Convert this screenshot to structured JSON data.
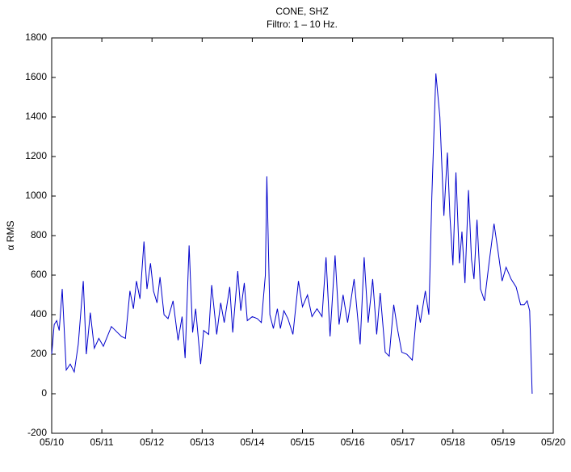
{
  "chart_data": {
    "type": "line",
    "title": "CONE, SHZ",
    "subtitle": "Filtro: 1 – 10 Hz.",
    "y_label": "α RMS",
    "x": [
      10.0,
      10.05,
      10.1,
      10.15,
      10.21,
      10.29,
      10.37,
      10.45,
      10.53,
      10.63,
      10.69,
      10.77,
      10.85,
      10.94,
      11.03,
      11.19,
      11.39,
      11.47,
      11.56,
      11.63,
      11.69,
      11.76,
      11.84,
      11.9,
      11.97,
      12.03,
      12.1,
      12.16,
      12.24,
      12.32,
      12.42,
      12.52,
      12.6,
      12.66,
      12.74,
      12.81,
      12.87,
      12.97,
      13.03,
      13.13,
      13.19,
      13.29,
      13.37,
      13.44,
      13.55,
      13.61,
      13.71,
      13.77,
      13.84,
      13.9,
      14.0,
      14.1,
      14.18,
      14.26,
      14.29,
      14.35,
      14.42,
      14.5,
      14.56,
      14.63,
      14.71,
      14.81,
      14.92,
      15.0,
      15.1,
      15.19,
      15.29,
      15.39,
      15.47,
      15.55,
      15.65,
      15.73,
      15.81,
      15.9,
      16.03,
      16.15,
      16.23,
      16.31,
      16.4,
      16.48,
      16.55,
      16.65,
      16.73,
      16.82,
      16.9,
      16.98,
      17.08,
      17.19,
      17.29,
      17.35,
      17.45,
      17.52,
      17.58,
      17.66,
      17.74,
      17.82,
      17.89,
      17.94,
      18.0,
      18.06,
      18.13,
      18.18,
      18.24,
      18.31,
      18.37,
      18.42,
      18.48,
      18.55,
      18.63,
      18.71,
      18.82,
      18.9,
      18.98,
      19.06,
      19.16,
      19.26,
      19.35,
      19.42,
      19.48,
      19.53,
      19.58
    ],
    "series": [
      {
        "color": "#0000cc",
        "values": [
          200,
          350,
          370,
          320,
          530,
          120,
          150,
          110,
          250,
          570,
          200,
          410,
          230,
          280,
          240,
          340,
          290,
          280,
          520,
          430,
          570,
          480,
          770,
          530,
          660,
          520,
          460,
          590,
          400,
          380,
          470,
          270,
          390,
          180,
          750,
          310,
          430,
          150,
          320,
          300,
          550,
          300,
          460,
          360,
          540,
          310,
          620,
          420,
          560,
          370,
          390,
          380,
          360,
          600,
          1100,
          400,
          330,
          430,
          330,
          420,
          380,
          300,
          570,
          440,
          500,
          390,
          430,
          390,
          690,
          290,
          700,
          350,
          500,
          360,
          580,
          250,
          690,
          360,
          580,
          300,
          510,
          210,
          190,
          450,
          320,
          210,
          200,
          170,
          450,
          360,
          520,
          400,
          1000,
          1620,
          1400,
          900,
          1220,
          900,
          650,
          1120,
          660,
          820,
          560,
          1030,
          680,
          580,
          880,
          530,
          470,
          640,
          860,
          720,
          570,
          640,
          580,
          540,
          450,
          450,
          470,
          420,
          0
        ]
      }
    ],
    "xlim": [
      10,
      20
    ],
    "xticks": [
      {
        "value": 10,
        "label": "05/10"
      },
      {
        "value": 11,
        "label": "05/11"
      },
      {
        "value": 12,
        "label": "05/12"
      },
      {
        "value": 13,
        "label": "05/13"
      },
      {
        "value": 14,
        "label": "05/14"
      },
      {
        "value": 15,
        "label": "05/15"
      },
      {
        "value": 16,
        "label": "05/16"
      },
      {
        "value": 17,
        "label": "05/17"
      },
      {
        "value": 18,
        "label": "05/18"
      },
      {
        "value": 19,
        "label": "05/19"
      },
      {
        "value": 20,
        "label": "05/20"
      }
    ],
    "ylim": [
      -200,
      1800
    ],
    "yticks": [
      -200,
      0,
      200,
      400,
      600,
      800,
      1000,
      1200,
      1400,
      1600,
      1800
    ],
    "grid": false
  }
}
